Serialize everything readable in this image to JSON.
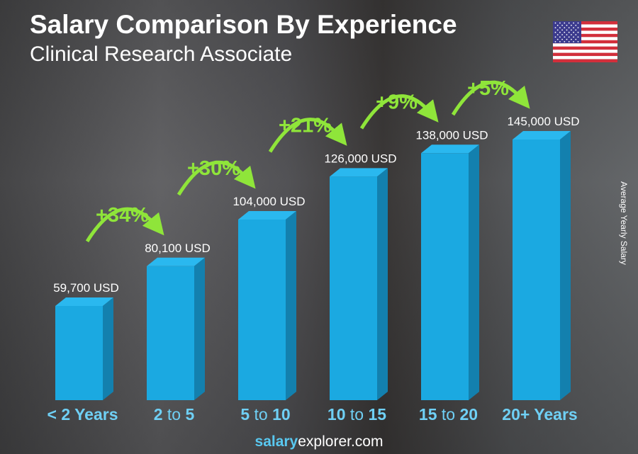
{
  "title": "Salary Comparison By Experience",
  "subtitle": "Clinical Research Associate",
  "flag_icon": "us-flag-icon",
  "footer": {
    "brand_bold": "salary",
    "brand_rest": "explorer",
    "brand_tld": ".com"
  },
  "chart_data": {
    "type": "bar",
    "title": "Salary Comparison By Experience",
    "subtitle": "Clinical Research Associate",
    "ylabel": "Average Yearly Salary",
    "categories": [
      {
        "a": "< 2 Years",
        "b": "",
        "c": ""
      },
      {
        "a": "2",
        "b": " to ",
        "c": "5"
      },
      {
        "a": "5",
        "b": " to ",
        "c": "10"
      },
      {
        "a": "10",
        "b": " to ",
        "c": "15"
      },
      {
        "a": "15",
        "b": " to ",
        "c": "20"
      },
      {
        "a": "20+ Years",
        "b": "",
        "c": ""
      }
    ],
    "values": [
      59700,
      80100,
      104000,
      126000,
      138000,
      145000
    ],
    "value_labels": [
      "59,700 USD",
      "80,100 USD",
      "104,000 USD",
      "126,000 USD",
      "138,000 USD",
      "145,000 USD"
    ],
    "changes": [
      "+34%",
      "+30%",
      "+21%",
      "+9%",
      "+5%"
    ],
    "colors": {
      "bar": "#1ba9e1",
      "bar_side": "#1380ae",
      "bar_top": "#2ab8ef",
      "change": "#8fe53a",
      "category": "#6fd0f5"
    }
  }
}
